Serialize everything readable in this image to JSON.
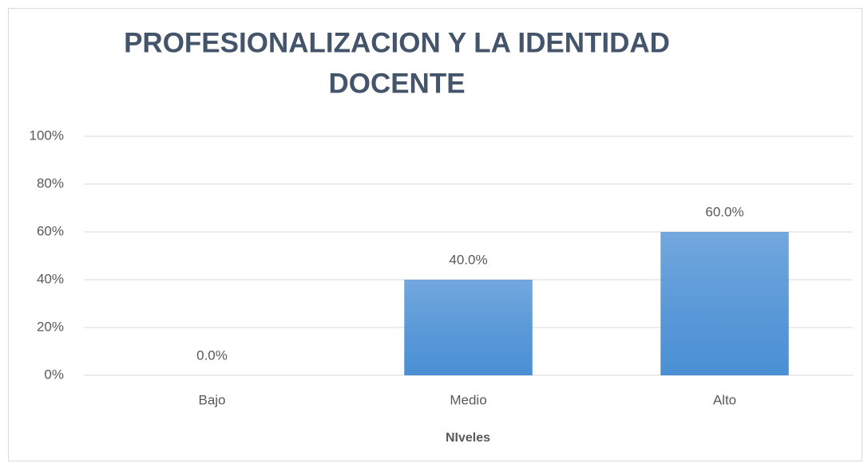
{
  "chart_data": {
    "type": "bar",
    "title": [
      "PROFESIONALIZACION Y LA IDENTIDAD",
      "DOCENTE"
    ],
    "x_label": "NIveles",
    "categories": [
      "Bajo",
      "Medio",
      "Alto"
    ],
    "values": [
      0,
      40,
      60
    ],
    "value_labels": [
      "0.0%",
      "40.0%",
      "60.0%"
    ],
    "color": "#4a8fd4",
    "ylim": [
      0,
      100
    ],
    "yticks": [
      {
        "value": 0,
        "label": "0%"
      },
      {
        "value": 20,
        "label": "20%"
      },
      {
        "value": 40,
        "label": "40%"
      },
      {
        "value": 60,
        "label": "60%"
      },
      {
        "value": 80,
        "label": "80%"
      },
      {
        "value": 100,
        "label": "100%"
      }
    ],
    "grid": true
  }
}
